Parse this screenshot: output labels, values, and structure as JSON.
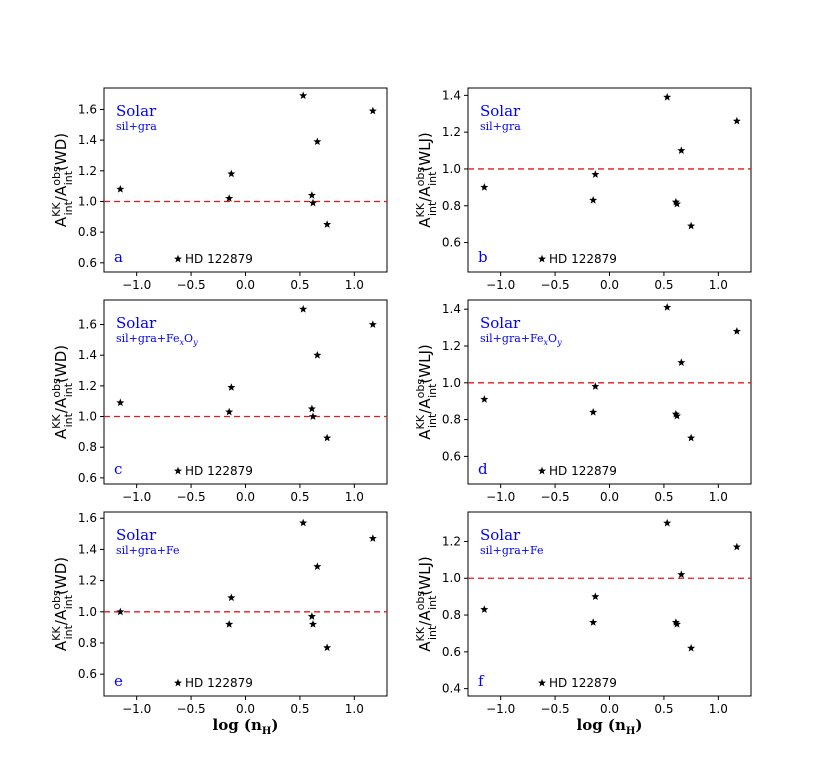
{
  "x_axis_label_main": "log (n",
  "x_axis_label_sub": "H",
  "x_axis_label_close": ")",
  "legend_star_label": "HD 122879",
  "chart_data": [
    {
      "type": "scatter",
      "panel": "a",
      "title": "Solar",
      "subtitle": "sil+gra",
      "ylabel": "A_int^KK/A_int^obs(WD)",
      "ylabel_suffix": "(WD)",
      "xlim": [
        -1.3,
        1.3
      ],
      "ylim": [
        0.54,
        1.74
      ],
      "xticks": [
        -1.0,
        -0.5,
        0.0,
        0.5,
        1.0
      ],
      "yticks": [
        0.6,
        0.8,
        1.0,
        1.2,
        1.4,
        1.6
      ],
      "reference_line": 1.0,
      "points": [
        [
          -1.15,
          1.08
        ],
        [
          -0.15,
          1.02
        ],
        [
          -0.13,
          1.18
        ],
        [
          0.53,
          1.69
        ],
        [
          0.61,
          1.04
        ],
        [
          0.62,
          0.99
        ],
        [
          0.66,
          1.39
        ],
        [
          0.75,
          0.85
        ],
        [
          1.17,
          1.59
        ]
      ]
    },
    {
      "type": "scatter",
      "panel": "b",
      "title": "Solar",
      "subtitle": "sil+gra",
      "ylabel": "A_int^KK/A_int^obs(WLJ)",
      "ylabel_suffix": "(WLJ)",
      "xlim": [
        -1.3,
        1.3
      ],
      "ylim": [
        0.44,
        1.44
      ],
      "xticks": [
        -1.0,
        -0.5,
        0.0,
        0.5,
        1.0
      ],
      "yticks": [
        0.6,
        0.8,
        1.0,
        1.2,
        1.4
      ],
      "reference_line": 1.0,
      "points": [
        [
          -1.15,
          0.9
        ],
        [
          -0.15,
          0.83
        ],
        [
          -0.13,
          0.97
        ],
        [
          0.53,
          1.39
        ],
        [
          0.61,
          0.82
        ],
        [
          0.62,
          0.81
        ],
        [
          0.66,
          1.1
        ],
        [
          0.75,
          0.69
        ],
        [
          1.17,
          1.26
        ]
      ]
    },
    {
      "type": "scatter",
      "panel": "c",
      "title": "Solar",
      "subtitle": "sil+gra+Fe",
      "subtitle_sub1": "x",
      "subtitle_mid": "O",
      "subtitle_sub2": "y",
      "ylabel": "A_int^KK/A_int^obs(WD)",
      "ylabel_suffix": "(WD)",
      "xlim": [
        -1.3,
        1.3
      ],
      "ylim": [
        0.56,
        1.76
      ],
      "xticks": [
        -1.0,
        -0.5,
        0.0,
        0.5,
        1.0
      ],
      "yticks": [
        0.6,
        0.8,
        1.0,
        1.2,
        1.4,
        1.6
      ],
      "reference_line": 1.0,
      "points": [
        [
          -1.15,
          1.09
        ],
        [
          -0.15,
          1.03
        ],
        [
          -0.13,
          1.19
        ],
        [
          0.53,
          1.7
        ],
        [
          0.61,
          1.05
        ],
        [
          0.62,
          1.0
        ],
        [
          0.66,
          1.4
        ],
        [
          0.75,
          0.86
        ],
        [
          1.17,
          1.6
        ]
      ]
    },
    {
      "type": "scatter",
      "panel": "d",
      "title": "Solar",
      "subtitle": "sil+gra+Fe",
      "subtitle_sub1": "x",
      "subtitle_mid": "O",
      "subtitle_sub2": "y",
      "ylabel": "A_int^KK/A_int^obs(WLJ)",
      "ylabel_suffix": "(WLJ)",
      "xlim": [
        -1.3,
        1.3
      ],
      "ylim": [
        0.45,
        1.45
      ],
      "xticks": [
        -1.0,
        -0.5,
        0.0,
        0.5,
        1.0
      ],
      "yticks": [
        0.6,
        0.8,
        1.0,
        1.2,
        1.4
      ],
      "reference_line": 1.0,
      "points": [
        [
          -1.15,
          0.91
        ],
        [
          -0.15,
          0.84
        ],
        [
          -0.13,
          0.98
        ],
        [
          0.53,
          1.41
        ],
        [
          0.61,
          0.83
        ],
        [
          0.62,
          0.82
        ],
        [
          0.66,
          1.11
        ],
        [
          0.75,
          0.7
        ],
        [
          1.17,
          1.28
        ]
      ]
    },
    {
      "type": "scatter",
      "panel": "e",
      "title": "Solar",
      "subtitle": "sil+gra+Fe",
      "ylabel": "A_int^KK/A_int^obs(WD)",
      "ylabel_suffix": "(WD)",
      "xlim": [
        -1.3,
        1.3
      ],
      "ylim": [
        0.46,
        1.64
      ],
      "xticks": [
        -1.0,
        -0.5,
        0.0,
        0.5,
        1.0
      ],
      "yticks": [
        0.6,
        0.8,
        1.0,
        1.2,
        1.4,
        1.6
      ],
      "reference_line": 1.0,
      "points": [
        [
          -1.15,
          1.0
        ],
        [
          -0.15,
          0.92
        ],
        [
          -0.13,
          1.09
        ],
        [
          0.53,
          1.57
        ],
        [
          0.61,
          0.97
        ],
        [
          0.62,
          0.92
        ],
        [
          0.66,
          1.29
        ],
        [
          0.75,
          0.77
        ],
        [
          1.17,
          1.47
        ]
      ]
    },
    {
      "type": "scatter",
      "panel": "f",
      "title": "Solar",
      "subtitle": "sil+gra+Fe",
      "ylabel": "A_int^KK/A_int^obs(WLJ)",
      "ylabel_suffix": "(WLJ)",
      "xlim": [
        -1.3,
        1.3
      ],
      "ylim": [
        0.36,
        1.36
      ],
      "xticks": [
        -1.0,
        -0.5,
        0.0,
        0.5,
        1.0
      ],
      "yticks": [
        0.4,
        0.6,
        0.8,
        1.0,
        1.2
      ],
      "reference_line": 1.0,
      "points": [
        [
          -1.15,
          0.83
        ],
        [
          -0.15,
          0.76
        ],
        [
          -0.13,
          0.9
        ],
        [
          0.53,
          1.3
        ],
        [
          0.61,
          0.76
        ],
        [
          0.62,
          0.75
        ],
        [
          0.66,
          1.02
        ],
        [
          0.75,
          0.62
        ],
        [
          1.17,
          1.17
        ]
      ]
    }
  ]
}
